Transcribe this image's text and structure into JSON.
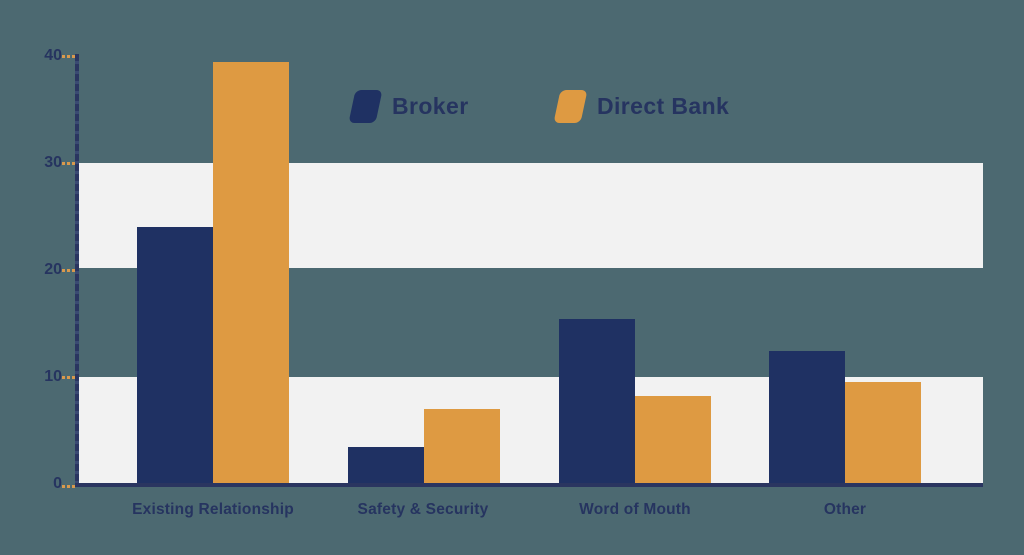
{
  "chart_data": {
    "type": "bar",
    "title": "",
    "xlabel": "",
    "ylabel": "",
    "categories": [
      "Existing Relationship",
      "Safety & Security",
      "Word of Mouth",
      "Other"
    ],
    "series": [
      {
        "name": "Broker",
        "color": "#1f3163",
        "values": [
          24,
          3.5,
          15.4,
          12.4
        ]
      },
      {
        "name": "Direct Bank",
        "color": "#de9a42",
        "values": [
          39.4,
          7.0,
          8.2,
          9.5
        ]
      }
    ],
    "y_axis": {
      "min": 0,
      "max": 40,
      "ticks": [
        0,
        10,
        20,
        30,
        40
      ],
      "tick_labels": [
        "0",
        "10",
        "20",
        "30",
        "40"
      ]
    },
    "grid_bands": [
      [
        0,
        10
      ],
      [
        20,
        30
      ]
    ],
    "legend": {
      "position": "top-center",
      "items": [
        "Broker",
        "Direct Bank"
      ]
    },
    "colors": {
      "background": "#4c6971",
      "band": "#f2f2f2",
      "bar_broker": "#1f3163",
      "bar_direct_bank": "#de9a42",
      "axis": "#2a3560",
      "tick": "#d9994d",
      "text": "#263460"
    }
  }
}
